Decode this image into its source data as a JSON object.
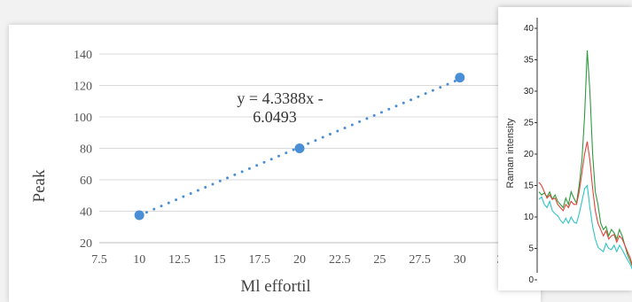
{
  "chart_data": [
    {
      "type": "scatter",
      "xlabel": "Ml effortil",
      "ylabel": "Peak",
      "xlim": [
        7.5,
        32.5
      ],
      "ylim": [
        20,
        140
      ],
      "xticks": [
        "7.5",
        "10",
        "12.5",
        "15",
        "17.5",
        "20",
        "22.5",
        "25",
        "27.5",
        "30",
        "3"
      ],
      "yticks": [
        "20",
        "40",
        "60",
        "80",
        "100",
        "120",
        "140"
      ],
      "grid": true,
      "points": [
        {
          "x": 10,
          "y": 37.5
        },
        {
          "x": 20,
          "y": 80
        },
        {
          "x": 30,
          "y": 125
        }
      ],
      "trendline": {
        "slope": 4.3388,
        "intercept": -6.0493,
        "style": "dotted",
        "label_line1": "y = 4.3388x -",
        "label_line2": "6.0493"
      },
      "colors": {
        "points": "#4a8fd6",
        "trendline": "#4a8fd6",
        "grid": "#d9d9d9"
      }
    },
    {
      "type": "line",
      "ylabel": "Raman intensity",
      "ylim": [
        0,
        40
      ],
      "yticks": [
        "0",
        "5",
        "10",
        "15",
        "20",
        "25",
        "30",
        "35",
        "40"
      ],
      "series": [
        {
          "color": "#2e9b3e",
          "values": [
            14,
            13.5,
            13.8,
            13.2,
            14,
            12.8,
            13.5,
            12.5,
            12,
            11.5,
            13,
            12,
            14,
            13,
            12.2,
            15,
            19,
            26,
            36.5,
            30,
            20,
            14,
            12,
            9,
            8,
            8.5,
            7,
            8,
            7.5,
            6.5,
            8,
            7,
            5.5,
            4,
            3,
            2
          ]
        },
        {
          "color": "#e0453a",
          "values": [
            15.5,
            15,
            14,
            13,
            13.5,
            12.8,
            13,
            12,
            11.5,
            11,
            12,
            11.5,
            12.5,
            12,
            12,
            14,
            17,
            20,
            22,
            19,
            14.5,
            11,
            9,
            8,
            7,
            7.8,
            6.5,
            7,
            7.2,
            6,
            7,
            6.5,
            5.5,
            4.5,
            3.5,
            2
          ]
        },
        {
          "color": "#2ec4c4",
          "values": [
            12.8,
            13.2,
            12,
            11.5,
            12.5,
            11,
            10.5,
            10.2,
            9.5,
            9,
            9.8,
            9,
            10,
            9.2,
            9,
            10.5,
            12.5,
            14.5,
            15,
            11.5,
            8.5,
            6.5,
            5.2,
            4.8,
            4.5,
            5.8,
            5,
            4.8,
            5.5,
            4.5,
            5.5,
            4.8,
            4,
            3.2,
            2.5,
            1.5
          ]
        }
      ]
    }
  ]
}
